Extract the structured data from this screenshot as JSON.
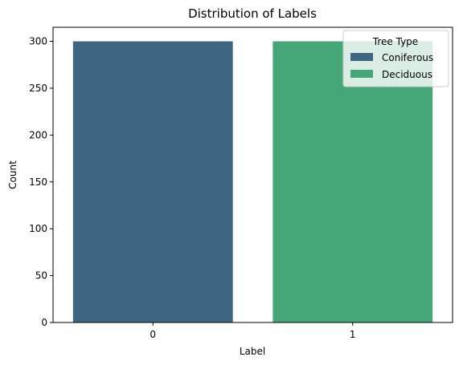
{
  "chart_data": {
    "type": "bar",
    "title": "Distribution of Labels",
    "xlabel": "Label",
    "ylabel": "Count",
    "categories": [
      "0",
      "1"
    ],
    "values": [
      300,
      300
    ],
    "ylim": [
      0,
      315
    ],
    "yticks": [
      0,
      50,
      100,
      150,
      200,
      250,
      300
    ],
    "colors": [
      "#3e6683",
      "#45a778"
    ],
    "grid": false,
    "legend": {
      "title": "Tree Type",
      "placement": "top-right",
      "entries": [
        {
          "label": "Coniferous",
          "color": "#3e6683"
        },
        {
          "label": "Deciduous",
          "color": "#45a778"
        }
      ]
    }
  }
}
